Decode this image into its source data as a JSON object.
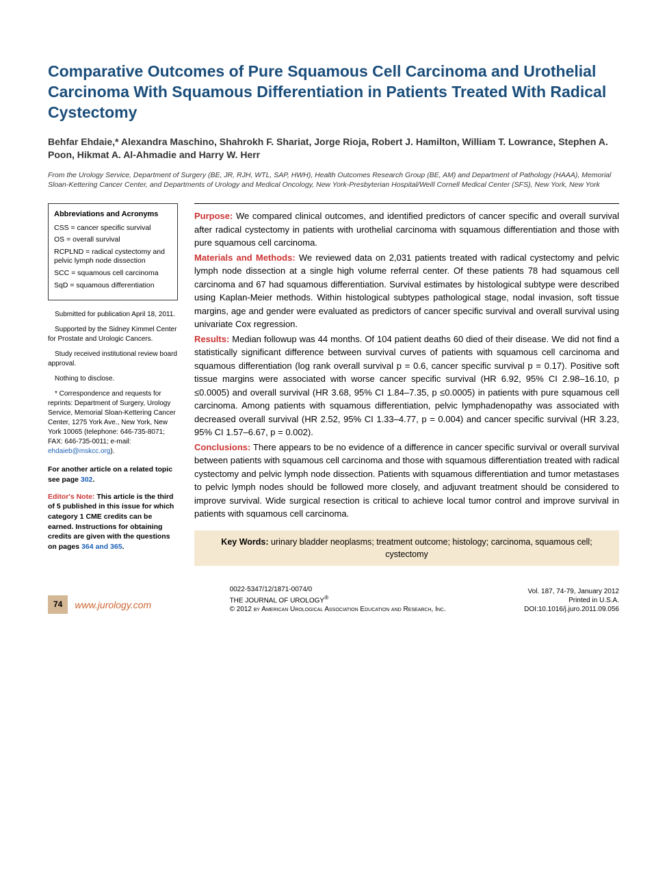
{
  "title": "Comparative Outcomes of Pure Squamous Cell Carcinoma and Urothelial Carcinoma With Squamous Differentiation in Patients Treated With Radical Cystectomy",
  "authors": "Behfar Ehdaie,* Alexandra Maschino, Shahrokh F. Shariat, Jorge Rioja, Robert J. Hamilton, William T. Lowrance, Stephen A. Poon, Hikmat A. Al-Ahmadie and Harry W. Herr",
  "affiliation": "From the Urology Service, Department of Surgery (BE, JR, RJH, WTL, SAP, HWH), Health Outcomes Research Group (BE, AM) and Department of Pathology (HAAA), Memorial Sloan-Kettering Cancer Center, and Departments of Urology and Medical Oncology, New York-Presbyterian Hospital/Weill Cornell Medical Center (SFS), New York, New York",
  "abbreviations": {
    "heading": "Abbreviations and Acronyms",
    "items": [
      "CSS = cancer specific survival",
      "OS = overall survival",
      "RCPLND = radical cystectomy and pelvic lymph node dissection",
      "SCC = squamous cell carcinoma",
      "SqD = squamous differentiation"
    ]
  },
  "sidebar": {
    "submitted": "Submitted for publication April 18, 2011.",
    "supported": "Supported by the Sidney Kimmel Center for Prostate and Urologic Cancers.",
    "irb": "Study received institutional review board approval.",
    "disclose": "Nothing to disclose.",
    "correspondence_prefix": "* Correspondence and requests for reprints: Department of Surgery, Urology Service, Memorial Sloan-Kettering Cancer Center, 1275 York Ave., New York, New York 10065 (telephone: 646-735-8071; FAX: 646-735-0011; e-mail: ",
    "correspondence_email": "ehdaieb@mskcc.org",
    "correspondence_suffix": ").",
    "related_prefix": "For another article on a related topic see page ",
    "related_page": "302",
    "related_suffix": ".",
    "editor_label": "Editor's Note:",
    "editor_text": " This article is the third of 5 published in this issue for which category 1 CME credits can be earned. Instructions for obtaining credits are given with the questions on pages ",
    "editor_pages": "364 and 365",
    "editor_suffix": "."
  },
  "abstract": {
    "purpose_label": "Purpose:",
    "purpose": " We compared clinical outcomes, and identified predictors of cancer specific and overall survival after radical cystectomy in patients with urothelial carcinoma with squamous differentiation and those with pure squamous cell carcinoma.",
    "methods_label": "Materials and Methods:",
    "methods": " We reviewed data on 2,031 patients treated with radical cystectomy and pelvic lymph node dissection at a single high volume referral center. Of these patients 78 had squamous cell carcinoma and 67 had squamous differentiation. Survival estimates by histological subtype were described using Kaplan-Meier methods. Within histological subtypes pathological stage, nodal invasion, soft tissue margins, age and gender were evaluated as predictors of cancer specific survival and overall survival using univariate Cox regression.",
    "results_label": "Results:",
    "results": " Median followup was 44 months. Of 104 patient deaths 60 died of their disease. We did not find a statistically significant difference between survival curves of patients with squamous cell carcinoma and squamous differentiation (log rank overall survival p = 0.6, cancer specific survival p = 0.17). Positive soft tissue margins were associated with worse cancer specific survival (HR 6.92, 95% CI 2.98–16.10, p ≤0.0005) and overall survival (HR 3.68, 95% CI 1.84–7.35, p ≤0.0005) in patients with pure squamous cell carcinoma. Among patients with squamous differentiation, pelvic lymphadenopathy was associated with decreased overall survival (HR 2.52, 95% CI 1.33–4.77, p = 0.004) and cancer specific survival (HR 3.23, 95% CI 1.57–6.67, p = 0.002).",
    "conclusions_label": "Conclusions:",
    "conclusions": " There appears to be no evidence of a difference in cancer specific survival or overall survival between patients with squamous cell carcinoma and those with squamous differentiation treated with radical cystectomy and pelvic lymph node dissection. Patients with squamous differentiation and tumor metastases to pelvic lymph nodes should be followed more closely, and adjuvant treatment should be considered to improve survival. Wide surgical resection is critical to achieve local tumor control and improve survival in patients with squamous cell carcinoma."
  },
  "keywords": {
    "label": "Key Words:",
    "text": " urinary bladder neoplasms; treatment outcome; histology; carcinoma, squamous cell; cystectomy"
  },
  "footer": {
    "page": "74",
    "url": "www.jurology.com",
    "issn": "0022-5347/12/1871-0074/0",
    "journal": "THE JOURNAL OF UROLOGY",
    "reg": "®",
    "copyright": "© 2012 by American Urological Association Education and Research, Inc.",
    "vol": "Vol. 187, 74-79, January 2012",
    "printed": "Printed in U.S.A.",
    "doi": "DOI:10.1016/j.juro.2011.09.056"
  }
}
